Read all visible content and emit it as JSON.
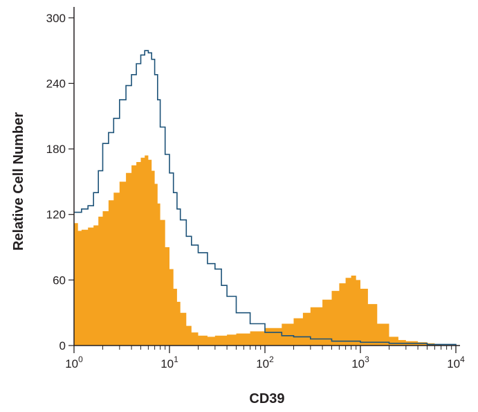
{
  "chart_data": {
    "type": "area",
    "title": "",
    "xlabel": "CD39",
    "ylabel": "Relative Cell Number",
    "x_scale": "log",
    "xlim": [
      1,
      10000
    ],
    "ylim": [
      0,
      310
    ],
    "y_ticks": [
      0,
      60,
      120,
      180,
      240,
      300
    ],
    "x_ticks": [
      {
        "value": 1,
        "base": "10",
        "exp": "0"
      },
      {
        "value": 10,
        "base": "10",
        "exp": "1"
      },
      {
        "value": 100,
        "base": "10",
        "exp": "2"
      },
      {
        "value": 1000,
        "base": "10",
        "exp": "3"
      },
      {
        "value": 10000,
        "base": "10",
        "exp": "4"
      }
    ],
    "grid": false,
    "legend": "none",
    "series": [
      {
        "style": "filled",
        "color": "#f5a21f",
        "x": [
          1,
          1.1,
          1.2,
          1.4,
          1.6,
          1.8,
          2,
          2.3,
          2.6,
          3,
          3.5,
          4,
          4.5,
          5,
          5.5,
          6,
          6.5,
          7,
          7.5,
          8,
          9,
          10,
          11,
          12,
          13,
          15,
          17,
          20,
          25,
          30,
          40,
          50,
          70,
          100,
          150,
          200,
          250,
          300,
          400,
          500,
          600,
          700,
          800,
          900,
          1000,
          1200,
          1500,
          2000,
          2500,
          3000,
          4000,
          5000,
          6000,
          7000,
          10000
        ],
        "y": [
          112,
          105,
          106,
          108,
          110,
          118,
          123,
          133,
          140,
          150,
          158,
          165,
          168,
          172,
          174,
          170,
          160,
          148,
          130,
          115,
          90,
          70,
          52,
          40,
          30,
          18,
          12,
          9,
          8,
          9,
          10,
          11,
          13,
          16,
          20,
          25,
          30,
          35,
          42,
          50,
          57,
          62,
          64,
          60,
          52,
          38,
          20,
          8,
          5,
          4,
          3,
          2,
          1,
          0,
          0
        ]
      },
      {
        "style": "line",
        "color": "#1c5278",
        "x": [
          1,
          1.2,
          1.4,
          1.6,
          1.8,
          2,
          2.3,
          2.6,
          3,
          3.5,
          4,
          4.5,
          5,
          5.5,
          6,
          6.5,
          7,
          7.5,
          8,
          9,
          10,
          11,
          12,
          13,
          15,
          17,
          20,
          25,
          30,
          35,
          40,
          50,
          70,
          100,
          150,
          200,
          300,
          500,
          1000,
          2000,
          5000,
          10000
        ],
        "y": [
          122,
          125,
          128,
          140,
          160,
          185,
          195,
          208,
          225,
          238,
          248,
          258,
          266,
          270,
          268,
          262,
          248,
          225,
          200,
          175,
          158,
          140,
          125,
          115,
          100,
          92,
          85,
          75,
          70,
          55,
          45,
          30,
          20,
          12,
          9,
          8,
          6,
          4,
          3,
          2,
          1,
          0
        ]
      }
    ]
  }
}
